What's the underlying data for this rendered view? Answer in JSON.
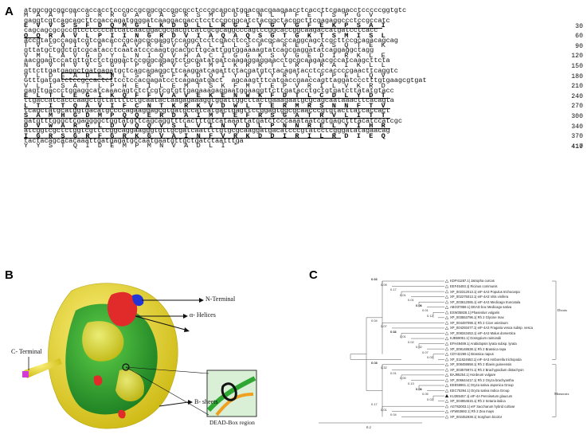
{
  "panels": {
    "a": "A",
    "b": "B",
    "c": "C"
  },
  "sequence": {
    "rows": [
      {
        "nt": "atggcggcggcgaccaccacctcccgccgcggcgccggcgcctcccgcagcatggacgacgaagaacctcaccttcgagacctcccccggtgtc",
        "aa": "M  A  A  T  T  S  R  R  G  A  G  A  S  R  S  M  D  D  E  N  L  T  F  E  T  S  P  G  V",
        "num": ""
      },
      {
        "nt": "gaggtcgtcagcagcttcgaccagatggggatcaaggacgacctcctccgcggcatctacggctacggcttcgagaggccctccgccatc",
        "aa": "E  V  V  S  S  F  D  Q  M  G  L  K  D  D  L  L  R  G  I  Y  G  Y  G  F  E  K  P  S  A  I",
        "num": "30"
      },
      {
        "nt": "cagcagcgcgccgtcctccccatcatcaacggacgcgacgtcatcgcgcaggcccagtccggcaccggcaagaccatgatcctcacc",
        "aa": "Q  Q  R  A  V  L  P  I  I  N  G  R  D  V  I  A  Q  A  Q  S  G  T  G  K  T  S  M  I  S  L",
        "num": "60"
      },
      {
        "nt": "accgtatgccagatcgtcgacacccgcagcgcgaggtccaggctcctcgacctcctccacgcacccaggcagctcgcttccgcagacagcag",
        "aa": "T  V  C  Q  I  V  D  T  A  V  R  E  V  Q  A  L  I  L  S  P  T  R  E  L  A  S  Q  T  E  K",
        "num": "90"
      },
      {
        "nt": "gttatgctggctgtcgcatacctcaatatcccaagtgcacgcttgcattggtggaaaagtatcagcgaggatatcaggaggctagg",
        "aa": "V  M  L  A  V  G  D  Y  L  N  I  Q  V  H  A  C  I  G  G  K  S  V  G  E  D  I  R  K  L  E",
        "num": "120"
      },
      {
        "nt": "aacggagtccatgttgtctctgggactccgggcagagtctgcgatatgatcaagaggaggaacctgcgcaagaacgccatcaagcttcta",
        "aa": "N  G  V  H  V  V  S  G  T  P  G  R  V  C  D  M  I  K  R  R  T  L  R  T  R  A  I  K  L  L",
        "num": "150"
      },
      {
        "nt": "gttcttgatgaggctgatgagatgctcagcagaggcttcaaggatcagattctacgatgtctacagatacctcccaccccgaacttcaggtc",
        "aa": "V  L  D  E  A  D  E  M  L  S  R  G  F  K  D  Q  I  Y  D  V  Y  R  Y  L  P  P  E  L  Q  V",
        "num": "180"
      },
      {
        "nt": "Gtttgatgatctccgccactcttcctccacgagatcctcagagatgact  agcaagtttcatgaccgaaccagttaggatccctttgtgaagcgtgat",
        "aa": "V  L  I  S  A  T  L  P  H  E  I  L  E  M  T  S  K  F  M  T  E  P  V  R  I  L  V  K  R  D",
        "num": "210"
      },
      {
        "nt": "gagttgaccctggaggcatcaaacagtctctcgtcgtgttgagaaagaggaatggaaggttcttgatacctgctgtgatcttatatgtacc",
        "aa": "E  L  T  L  E  G  I  K  Q  F  F  V  A  V  E  K  E  N  W  K  F  D  T  L  C  D  L  Y  D  T",
        "num": "240"
      },
      {
        "nt": "ttgaccatcacccaagctgttattttctgcaatactaagagaaaggtggattggcttactgaaagaatgcgcagcaataaacttcacagta",
        "aa": "L  T  I  T  Q  A  V  I  F  C  N  T  K  R  K  V  D  W  L  T  E  R  M  R  S  N  N  F  T  V",
        "num": "270"
      },
      {
        "nt": "tcagctatgcatggtgacatgccccagaaggagcgtgatgccatcatgactgagttccggagtggcgcaacccgtgtacttatcaccact",
        "aa": "S  A  M  H  G  D  M  P  Q  Q  E  R  D  A  I  M  T  E  F  R  S  G  A  T  R  V  L  I  T  T",
        "num": "300"
      },
      {
        "nt": "gatgtttgggctcgaggggctggtatgttcagcaggtttcactttgtcataaattatgatctcccaaataatcgtgagctttacatccatcgc",
        "aa": "D  V  W  A  R  G  L  D  V  Q  Q  V  S  L  V  I  N  Y  D  L  P  N  N  R  E  L  Y  I  H  R",
        "num": "340"
      },
      {
        "nt": "atcggtcgctctggtcgtttcggcaggaagggtgttgcgatcaattttgtgcgcaaggatgacatcccgtatcctcgggatatagaacag",
        "aa": "I  G  R  S  G  R  F  G  R  K  G  V  A  I  N  F  V  R  K  D  D  I  R  I  L  R  D  I  E  Q",
        "num": "370"
      },
      {
        "nt": "tactacagcacacaaattgatgagatgccaatgaatgttgctgatctaatttga",
        "aa": "Y  Y  S  T  Q  I  D  E  M  P  M  N  V  A  D  L  I  *",
        "num": "410"
      }
    ],
    "last_num": "417",
    "dead_motif": "DEAD"
  },
  "structure": {
    "n_terminal": "N-Terminal",
    "alpha_helices": "α- Helices",
    "c_terminal": "C- Terminal",
    "b_sheets": "B- sheets",
    "dead_box": "DEAD-Box region"
  },
  "tree": {
    "leaves": [
      "KDP41287.1| Jatropha curcas",
      "EEF45493.1| Ricinus communis",
      "XP_002312013.1| eIF-4A3 Populus trichocarpa",
      "XP_002275013.1| eIF-4A3 Vitis vinifera",
      "XP_003612065.1| eIF-4A3 Medicago truncatula",
      "ABO37859.1| DEAD box Medicago sativa",
      "ESW35828.1| Phaseolus vulgaris",
      "XP_003553796.1| Rh 2 Glycine max",
      "XP_004497098.1| Rh 2 Cicer arietinum",
      "XP_004293477.1| eIF-4A3 Fragaria vesca subsp. vesca",
      "XP_008343453.1| eIF-4A3 Malus domestica",
      "KJB59051.1| Gossypium raimondii",
      "EFH49489.1| Arabidopsis lyrata subsp. lyrata",
      "XP_009148538.1| Rh 2 Brassica rapa",
      "CDY42269.1| Brassica napus",
      "XP_011624653.1| eIF-4A3 Amborella trichopoda",
      "XP_008459658.1| Rh 2 Elaeis guineensis",
      "XP_003575974.1| Rh 2 Brachypodium distachyon",
      "BAJ95254.1| Hordeum vulgare",
      "XP_006644417.1| Rh 2 Oryza brachyantha",
      "EEE55961.1| Oryza sativa Japonica Group",
      "EEC75394.1| Oryza sativa Indica Group",
      "KU365457.1| eIF-4A Pennisetum glaucum",
      "XP_004954515.1| Rh 2 Setaria italica",
      "AGT63003.1| eIF Saccharum hybrid cultivar",
      "AFW63692.1| Rh 2 Zea mays",
      "XP_002452939.1| Sorghum bicolor"
    ],
    "bootstrap": [
      "0.13",
      "0.01",
      "0.09",
      "0.17",
      "0.01",
      "0.01",
      "0.06",
      "0.01",
      "0.01",
      "0.12",
      "0.04",
      "0.07",
      "0.04",
      "0.11",
      "0.01",
      "0.02",
      "0.02",
      "0.07",
      "0.02",
      "0.04",
      "0.03",
      "0.32",
      "0.01",
      "0.00",
      "0.13",
      "0.01",
      "0.06",
      "0.05",
      "0.02",
      "0.17",
      "0.01",
      "0.04"
    ],
    "groups": {
      "dicots": "Dicots",
      "monocots": "Monocots"
    },
    "scale": "0.2"
  },
  "colors": {
    "yellow": "#f3e03a",
    "green": "#2fa833",
    "red": "#e12a2a",
    "blue": "#2236d6",
    "magenta": "#d23bd6"
  }
}
